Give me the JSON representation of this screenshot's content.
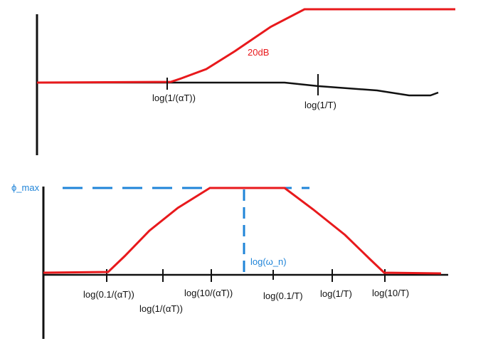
{
  "top_plot": {
    "gain_label": "20dB",
    "tick_labels": [
      "log(1/(αT))",
      "log(1/T)"
    ]
  },
  "bottom_plot": {
    "max_label": "ϕ_max",
    "wn_label": "log(ω_n)",
    "tick_labels": [
      "log(0.1/(αT))",
      "log(1/(αT))",
      "log(10/(αT))",
      "log(0.1/T)",
      "log(1/T)",
      "log(10/T)"
    ]
  },
  "colors": {
    "axis": "#111111",
    "magnitude": "#e8191c",
    "phase": "#e8191c",
    "guide": "#1f84d8"
  }
}
